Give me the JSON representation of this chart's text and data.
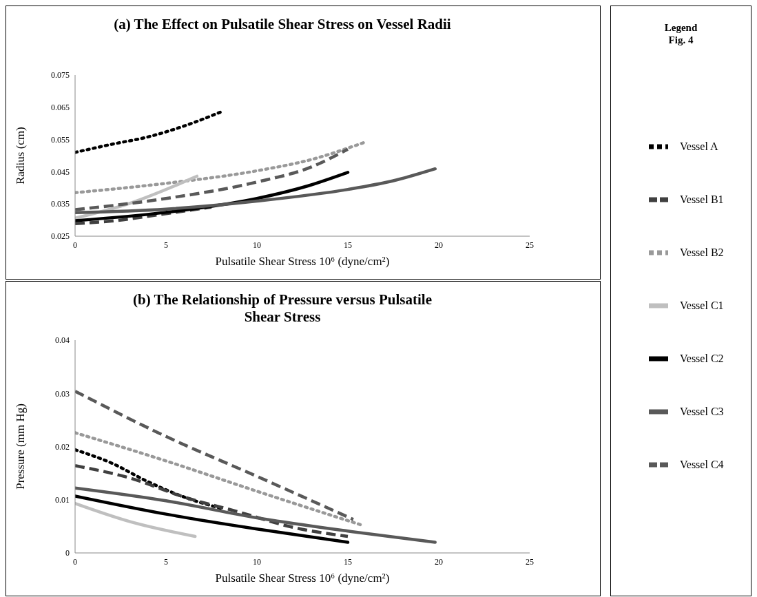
{
  "chart_data": [
    {
      "type": "line",
      "title": "(a) The Effect on Pulsatile Shear Stress on Vessel Radii",
      "xlabel": "Pulsatile Shear Stress 10⁶ (dyne/cm²)",
      "ylabel": "Radius (cm)",
      "xlim": [
        0,
        25
      ],
      "xticks": [
        0,
        5,
        10,
        15,
        20,
        25
      ],
      "ylim": [
        0.025,
        0.075
      ],
      "yticks": [
        {
          "value": 0.025,
          "label": "0.025"
        },
        {
          "value": 0.035,
          "label": "0.035"
        },
        {
          "value": 0.045,
          "label": "0.045"
        },
        {
          "value": 0.055,
          "label": "0.055"
        },
        {
          "value": 0.065,
          "label": "0.065"
        },
        {
          "value": 0.075,
          "label": "0.075"
        }
      ],
      "grid": false,
      "marker": "none",
      "legend": "right",
      "legend_title": "Legend Fig. 4",
      "series": [
        {
          "name": "Vessel A",
          "color": "#000000",
          "line_style": "dotted",
          "x": [
            0,
            2,
            4,
            6,
            8
          ],
          "values": [
            0.051,
            0.0535,
            0.0558,
            0.0592,
            0.0635
          ]
        },
        {
          "name": "Vessel B1",
          "color": "#404040",
          "line_style": "dashed",
          "x": [
            0,
            2,
            5,
            7.5
          ],
          "values": [
            0.0289,
            0.0297,
            0.032,
            0.034
          ]
        },
        {
          "name": "Vessel B2",
          "color": "#999999",
          "line_style": "dotted",
          "x": [
            0,
            5,
            10,
            13,
            15.9
          ],
          "values": [
            0.0385,
            0.0414,
            0.0453,
            0.0488,
            0.0541
          ]
        },
        {
          "name": "Vessel C1",
          "color": "#bfbfbf",
          "line_style": "solid",
          "x": [
            0,
            3,
            6.7
          ],
          "values": [
            0.0306,
            0.0352,
            0.0436
          ]
        },
        {
          "name": "Vessel C2",
          "color": "#000000",
          "line_style": "solid",
          "x": [
            0,
            5,
            10,
            12.8,
            15
          ],
          "values": [
            0.0298,
            0.0324,
            0.0367,
            0.0406,
            0.0448
          ]
        },
        {
          "name": "Vessel C3",
          "color": "#595959",
          "line_style": "solid",
          "x": [
            0,
            5,
            10,
            15,
            17.5,
            19.8
          ],
          "values": [
            0.0323,
            0.0334,
            0.0359,
            0.0395,
            0.0422,
            0.0459
          ]
        },
        {
          "name": "Vessel C4",
          "color": "#595959",
          "line_style": "dashed",
          "x": [
            0,
            5,
            10,
            13,
            15
          ],
          "values": [
            0.0332,
            0.0367,
            0.0418,
            0.0465,
            0.052
          ]
        }
      ]
    },
    {
      "type": "line",
      "title": "(b) The Relationship of Pressure versus Pulsatile Shear Stress",
      "xlabel": "Pulsatile Shear Stress 10⁶  (dyne/cm²)",
      "ylabel": "Pressure (mm Hg)",
      "xlim": [
        0,
        25
      ],
      "xticks": [
        0,
        5,
        10,
        15,
        20,
        25
      ],
      "ylim": [
        0,
        0.04
      ],
      "yticks": [
        0,
        0.01,
        0.02,
        0.03,
        0.04
      ],
      "grid": false,
      "marker": "none",
      "series": [
        {
          "color": "#000000",
          "line_style": "dotted",
          "x": [
            0,
            2,
            4,
            6,
            8
          ],
          "values": [
            0.0194,
            0.0169,
            0.0134,
            0.0105,
            0.0084
          ]
        },
        {
          "color": "#404040",
          "line_style": "dashed",
          "x": [
            0,
            3,
            6,
            9,
            12,
            15
          ],
          "values": [
            0.0164,
            0.0141,
            0.0105,
            0.0077,
            0.0048,
            0.0031
          ]
        },
        {
          "color": "#999999",
          "line_style": "dotted",
          "x": [
            0,
            5,
            10,
            15.8
          ],
          "values": [
            0.0226,
            0.0173,
            0.0116,
            0.0052
          ]
        },
        {
          "color": "#bfbfbf",
          "line_style": "solid",
          "x": [
            0,
            3,
            6.6
          ],
          "values": [
            0.0093,
            0.0059,
            0.0031
          ]
        },
        {
          "color": "#000000",
          "line_style": "solid",
          "x": [
            0,
            5,
            10,
            15
          ],
          "values": [
            0.0107,
            0.0073,
            0.0045,
            0.002
          ]
        },
        {
          "color": "#595959",
          "line_style": "solid",
          "x": [
            0,
            5,
            10,
            15,
            19.8
          ],
          "values": [
            0.0122,
            0.0098,
            0.0066,
            0.0041,
            0.002
          ]
        },
        {
          "color": "#595959",
          "line_style": "dashed",
          "x": [
            0,
            5,
            10,
            15.3
          ],
          "values": [
            0.0304,
            0.0219,
            0.0144,
            0.0063
          ]
        }
      ]
    }
  ]
}
